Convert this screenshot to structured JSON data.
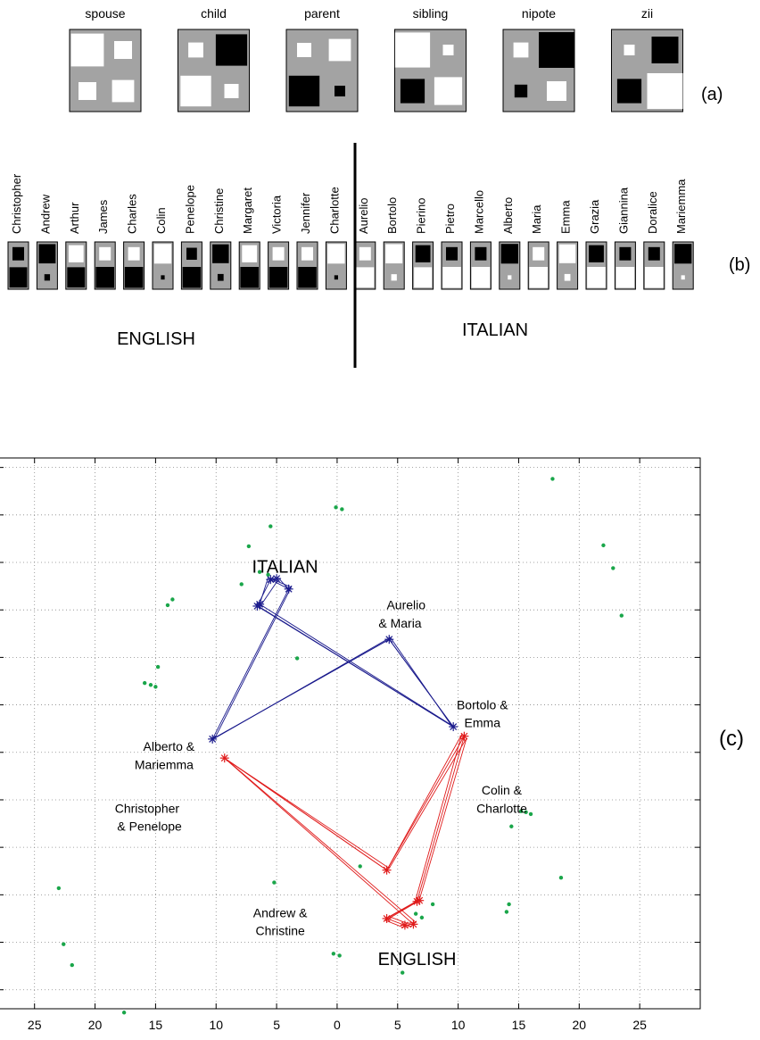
{
  "panel_a": {
    "label": "(a)",
    "relations": [
      {
        "name": "spouse",
        "bg": "gray",
        "cells": [
          {
            "c": "white",
            "s": 0.92
          },
          {
            "c": "white",
            "s": 0.5
          },
          {
            "c": "white",
            "s": 0.5
          },
          {
            "c": "white",
            "s": 0.62
          }
        ]
      },
      {
        "name": "child",
        "bg": "gray",
        "cells": [
          {
            "c": "white",
            "s": 0.42
          },
          {
            "c": "black",
            "s": 0.88
          },
          {
            "c": "white",
            "s": 0.86
          },
          {
            "c": "white",
            "s": 0.4
          }
        ]
      },
      {
        "name": "parent",
        "bg": "gray",
        "cells": [
          {
            "c": "white",
            "s": 0.4
          },
          {
            "c": "white",
            "s": 0.62
          },
          {
            "c": "black",
            "s": 0.86
          },
          {
            "c": "black",
            "s": 0.3
          }
        ]
      },
      {
        "name": "sibling",
        "bg": "gray",
        "cells": [
          {
            "c": "white",
            "s": 0.98
          },
          {
            "c": "white",
            "s": 0.3
          },
          {
            "c": "black",
            "s": 0.68
          },
          {
            "c": "white",
            "s": 0.78
          }
        ]
      },
      {
        "name": "nipote",
        "bg": "gray",
        "cells": [
          {
            "c": "white",
            "s": 0.42
          },
          {
            "c": "black",
            "s": 1.0
          },
          {
            "c": "black",
            "s": 0.36
          },
          {
            "c": "white",
            "s": 0.55
          }
        ]
      },
      {
        "name": "zii",
        "bg": "gray",
        "cells": [
          {
            "c": "white",
            "s": 0.3
          },
          {
            "c": "black",
            "s": 0.75
          },
          {
            "c": "black",
            "s": 0.68
          },
          {
            "c": "white",
            "s": 1.0
          }
        ]
      }
    ]
  },
  "panel_b": {
    "label": "(b)",
    "group_left": "ENGLISH",
    "group_right": "ITALIAN",
    "people": [
      {
        "name": "Christopher",
        "top": {
          "c": "black",
          "s": 0.62
        },
        "bottom": {
          "c": "black",
          "s": 0.95
        }
      },
      {
        "name": "Andrew",
        "top": {
          "c": "black",
          "s": 0.9
        },
        "bottom": {
          "c": "black",
          "s": 0.3
        }
      },
      {
        "name": "Arthur",
        "top": {
          "c": "white",
          "s": 0.8
        },
        "bottom": {
          "c": "black",
          "s": 0.95
        }
      },
      {
        "name": "James",
        "top": {
          "c": "white",
          "s": 0.62
        },
        "bottom": {
          "c": "black",
          "s": 0.98
        }
      },
      {
        "name": "Charles",
        "top": {
          "c": "white",
          "s": 0.62
        },
        "bottom": {
          "c": "black",
          "s": 0.98
        }
      },
      {
        "name": "Colin",
        "top": {
          "c": "white",
          "s": 0.92
        },
        "bottom": {
          "c": "black",
          "s": 0.2
        }
      },
      {
        "name": "Penelope",
        "top": {
          "c": "black",
          "s": 0.56
        },
        "bottom": {
          "c": "black",
          "s": 0.98
        }
      },
      {
        "name": "Christine",
        "top": {
          "c": "black",
          "s": 0.88
        },
        "bottom": {
          "c": "black",
          "s": 0.32
        }
      },
      {
        "name": "Margaret",
        "top": {
          "c": "white",
          "s": 0.8
        },
        "bottom": {
          "c": "black",
          "s": 0.98
        }
      },
      {
        "name": "Victoria",
        "top": {
          "c": "white",
          "s": 0.62
        },
        "bottom": {
          "c": "black",
          "s": 0.98
        }
      },
      {
        "name": "Jennifer",
        "top": {
          "c": "white",
          "s": 0.62
        },
        "bottom": {
          "c": "black",
          "s": 0.98
        }
      },
      {
        "name": "Charlotte",
        "top": {
          "c": "white",
          "s": 0.92
        },
        "bottom": {
          "c": "black",
          "s": 0.2
        }
      },
      {
        "name": "Aurelio",
        "top": {
          "c": "white",
          "s": 0.62
        },
        "bottom": {
          "c": "white",
          "s": 0.95
        }
      },
      {
        "name": "Bortolo",
        "top": {
          "c": "white",
          "s": 0.9
        },
        "bottom": {
          "c": "white",
          "s": 0.3
        }
      },
      {
        "name": "Pierino",
        "top": {
          "c": "black",
          "s": 0.8
        },
        "bottom": {
          "c": "white",
          "s": 0.95
        }
      },
      {
        "name": "Pietro",
        "top": {
          "c": "black",
          "s": 0.62
        },
        "bottom": {
          "c": "white",
          "s": 0.98
        }
      },
      {
        "name": "Marcello",
        "top": {
          "c": "black",
          "s": 0.62
        },
        "bottom": {
          "c": "white",
          "s": 0.98
        }
      },
      {
        "name": "Alberto",
        "top": {
          "c": "black",
          "s": 0.92
        },
        "bottom": {
          "c": "white",
          "s": 0.2
        }
      },
      {
        "name": "Maria",
        "top": {
          "c": "white",
          "s": 0.62
        },
        "bottom": {
          "c": "white",
          "s": 0.98
        }
      },
      {
        "name": "Emma",
        "top": {
          "c": "white",
          "s": 0.88
        },
        "bottom": {
          "c": "white",
          "s": 0.32
        }
      },
      {
        "name": "Grazia",
        "top": {
          "c": "black",
          "s": 0.8
        },
        "bottom": {
          "c": "white",
          "s": 0.98
        }
      },
      {
        "name": "Giannina",
        "top": {
          "c": "black",
          "s": 0.62
        },
        "bottom": {
          "c": "white",
          "s": 0.98
        }
      },
      {
        "name": "Doralice",
        "top": {
          "c": "black",
          "s": 0.62
        },
        "bottom": {
          "c": "white",
          "s": 0.98
        }
      },
      {
        "name": "Mariemma",
        "top": {
          "c": "black",
          "s": 0.92
        },
        "bottom": {
          "c": "white",
          "s": 0.2
        }
      }
    ]
  },
  "chart_data": {
    "type": "scatter",
    "label": "(c)",
    "xlim": [
      -28,
      30
    ],
    "ylim": [
      -27,
      31
    ],
    "grid": true,
    "x_tick_values": [
      -25,
      -20,
      -15,
      -10,
      -5,
      0,
      5,
      10,
      15,
      20,
      25
    ],
    "x_tick_labels": [
      "25",
      "20",
      "15",
      "10",
      "5",
      "0",
      "5",
      "10",
      "15",
      "20",
      "25"
    ],
    "y_tick_values": [
      -25,
      -20,
      -15,
      -10,
      -5,
      0,
      5,
      10,
      15,
      20,
      25,
      30
    ],
    "colors": {
      "italian": "#1a1a8c",
      "english": "#e01b1b",
      "other": "#1aa64a"
    },
    "annotations": [
      {
        "text": "ITALIAN",
        "x": -4.3,
        "y": 19.4,
        "size": "large"
      },
      {
        "text": "ENGLISH",
        "x": 6.6,
        "y": -21.9,
        "size": "large"
      },
      {
        "text": "Aurelio",
        "x": 5.7,
        "y": 15.4
      },
      {
        "text": "& Maria",
        "x": 5.2,
        "y": 13.5
      },
      {
        "text": "Bortolo &",
        "x": 12.0,
        "y": 4.9
      },
      {
        "text": "Emma",
        "x": 12.0,
        "y": 3.0
      },
      {
        "text": "Alberto &",
        "x": -13.9,
        "y": 0.5
      },
      {
        "text": "Mariemma",
        "x": -14.3,
        "y": -1.4
      },
      {
        "text": "Colin &",
        "x": 13.6,
        "y": -4.1
      },
      {
        "text": "Charlotte",
        "x": 13.6,
        "y": -6.0
      },
      {
        "text": "Christopher",
        "x": -15.7,
        "y": -6.0
      },
      {
        "text": "& Penelope",
        "x": -15.5,
        "y": -7.9
      },
      {
        "text": "Andrew &",
        "x": -4.7,
        "y": -17.0
      },
      {
        "text": "Christine",
        "x": -4.7,
        "y": -18.9
      }
    ],
    "series": [
      {
        "color": "italian",
        "points": [
          [
            -10.3,
            1.4
          ],
          [
            4.3,
            11.9
          ],
          [
            9.6,
            2.7
          ],
          [
            -6.6,
            15.4
          ],
          [
            -5.5,
            18.2
          ],
          [
            -4.0,
            17.2
          ],
          [
            -10.3,
            1.4
          ]
        ]
      },
      {
        "color": "italian",
        "points": [
          [
            -10.1,
            1.5
          ],
          [
            4.4,
            12.1
          ],
          [
            9.4,
            2.9
          ],
          [
            -6.4,
            15.6
          ],
          [
            -5.7,
            18.4
          ],
          [
            -3.8,
            17.4
          ],
          [
            -10.1,
            1.5
          ]
        ]
      },
      {
        "color": "italian",
        "points": [
          [
            -10.3,
            1.4
          ],
          [
            4.3,
            11.9
          ],
          [
            9.6,
            2.7
          ],
          [
            -6.4,
            15.3
          ],
          [
            -4.8,
            18.3
          ],
          [
            -3.9,
            17.0
          ]
        ]
      },
      {
        "color": "english",
        "points": [
          [
            -9.3,
            -0.6
          ],
          [
            4.1,
            -12.4
          ],
          [
            10.5,
            1.7
          ],
          [
            6.6,
            -15.7
          ],
          [
            4.1,
            -17.5
          ],
          [
            5.6,
            -18.2
          ],
          [
            6.3,
            -18.1
          ],
          [
            -9.3,
            -0.6
          ]
        ]
      },
      {
        "color": "english",
        "points": [
          [
            -9.1,
            -0.8
          ],
          [
            4.3,
            -12.2
          ],
          [
            10.7,
            1.5
          ],
          [
            6.8,
            -15.5
          ],
          [
            4.3,
            -17.3
          ],
          [
            5.8,
            -18.0
          ],
          [
            6.5,
            -17.9
          ],
          [
            -9.1,
            -0.8
          ]
        ]
      },
      {
        "color": "english",
        "points": [
          [
            -9.3,
            -0.6
          ],
          [
            4.1,
            -12.4
          ],
          [
            10.3,
            1.9
          ],
          [
            6.4,
            -15.9
          ],
          [
            4.0,
            -17.7
          ],
          [
            5.4,
            -18.4
          ],
          [
            6.1,
            -18.3
          ]
        ]
      }
    ],
    "stars": {
      "italian": [
        [
          -10.3,
          1.4
        ],
        [
          4.3,
          11.9
        ],
        [
          9.6,
          2.7
        ],
        [
          -6.6,
          15.4
        ],
        [
          -5.5,
          18.2
        ],
        [
          -4.0,
          17.2
        ],
        [
          -6.4,
          15.6
        ],
        [
          -5.0,
          18.3
        ]
      ],
      "english": [
        [
          -9.3,
          -0.6
        ],
        [
          4.1,
          -12.4
        ],
        [
          10.5,
          1.7
        ],
        [
          6.6,
          -15.7
        ],
        [
          4.1,
          -17.5
        ],
        [
          5.6,
          -18.2
        ],
        [
          6.3,
          -18.1
        ],
        [
          6.8,
          -15.6
        ]
      ]
    },
    "green_points": [
      [
        17.8,
        28.8
      ],
      [
        -0.1,
        25.8
      ],
      [
        0.4,
        25.6
      ],
      [
        -5.5,
        23.8
      ],
      [
        -7.3,
        21.7
      ],
      [
        22.0,
        21.8
      ],
      [
        22.8,
        19.4
      ],
      [
        -6.4,
        19.0
      ],
      [
        -5.7,
        18.7
      ],
      [
        -7.9,
        17.7
      ],
      [
        -13.6,
        16.1
      ],
      [
        -14.0,
        15.5
      ],
      [
        23.5,
        14.4
      ],
      [
        -3.3,
        9.9
      ],
      [
        -14.8,
        9.0
      ],
      [
        -15.9,
        7.3
      ],
      [
        -15.4,
        7.1
      ],
      [
        -15.0,
        6.9
      ],
      [
        15.6,
        -6.3
      ],
      [
        16.0,
        -6.5
      ],
      [
        15.2,
        -6.2
      ],
      [
        14.4,
        -7.8
      ],
      [
        -23.0,
        -14.3
      ],
      [
        18.5,
        -13.2
      ],
      [
        14.2,
        -16.0
      ],
      [
        14.0,
        -16.8
      ],
      [
        -22.6,
        -20.2
      ],
      [
        -21.9,
        -22.4
      ],
      [
        -17.6,
        -27.4
      ],
      [
        -0.3,
        -21.2
      ],
      [
        0.2,
        -21.4
      ],
      [
        1.9,
        -12.0
      ],
      [
        6.5,
        -17.0
      ],
      [
        7.0,
        -17.4
      ],
      [
        7.9,
        -16.0
      ],
      [
        5.4,
        -23.2
      ],
      [
        -5.2,
        -13.7
      ]
    ]
  }
}
